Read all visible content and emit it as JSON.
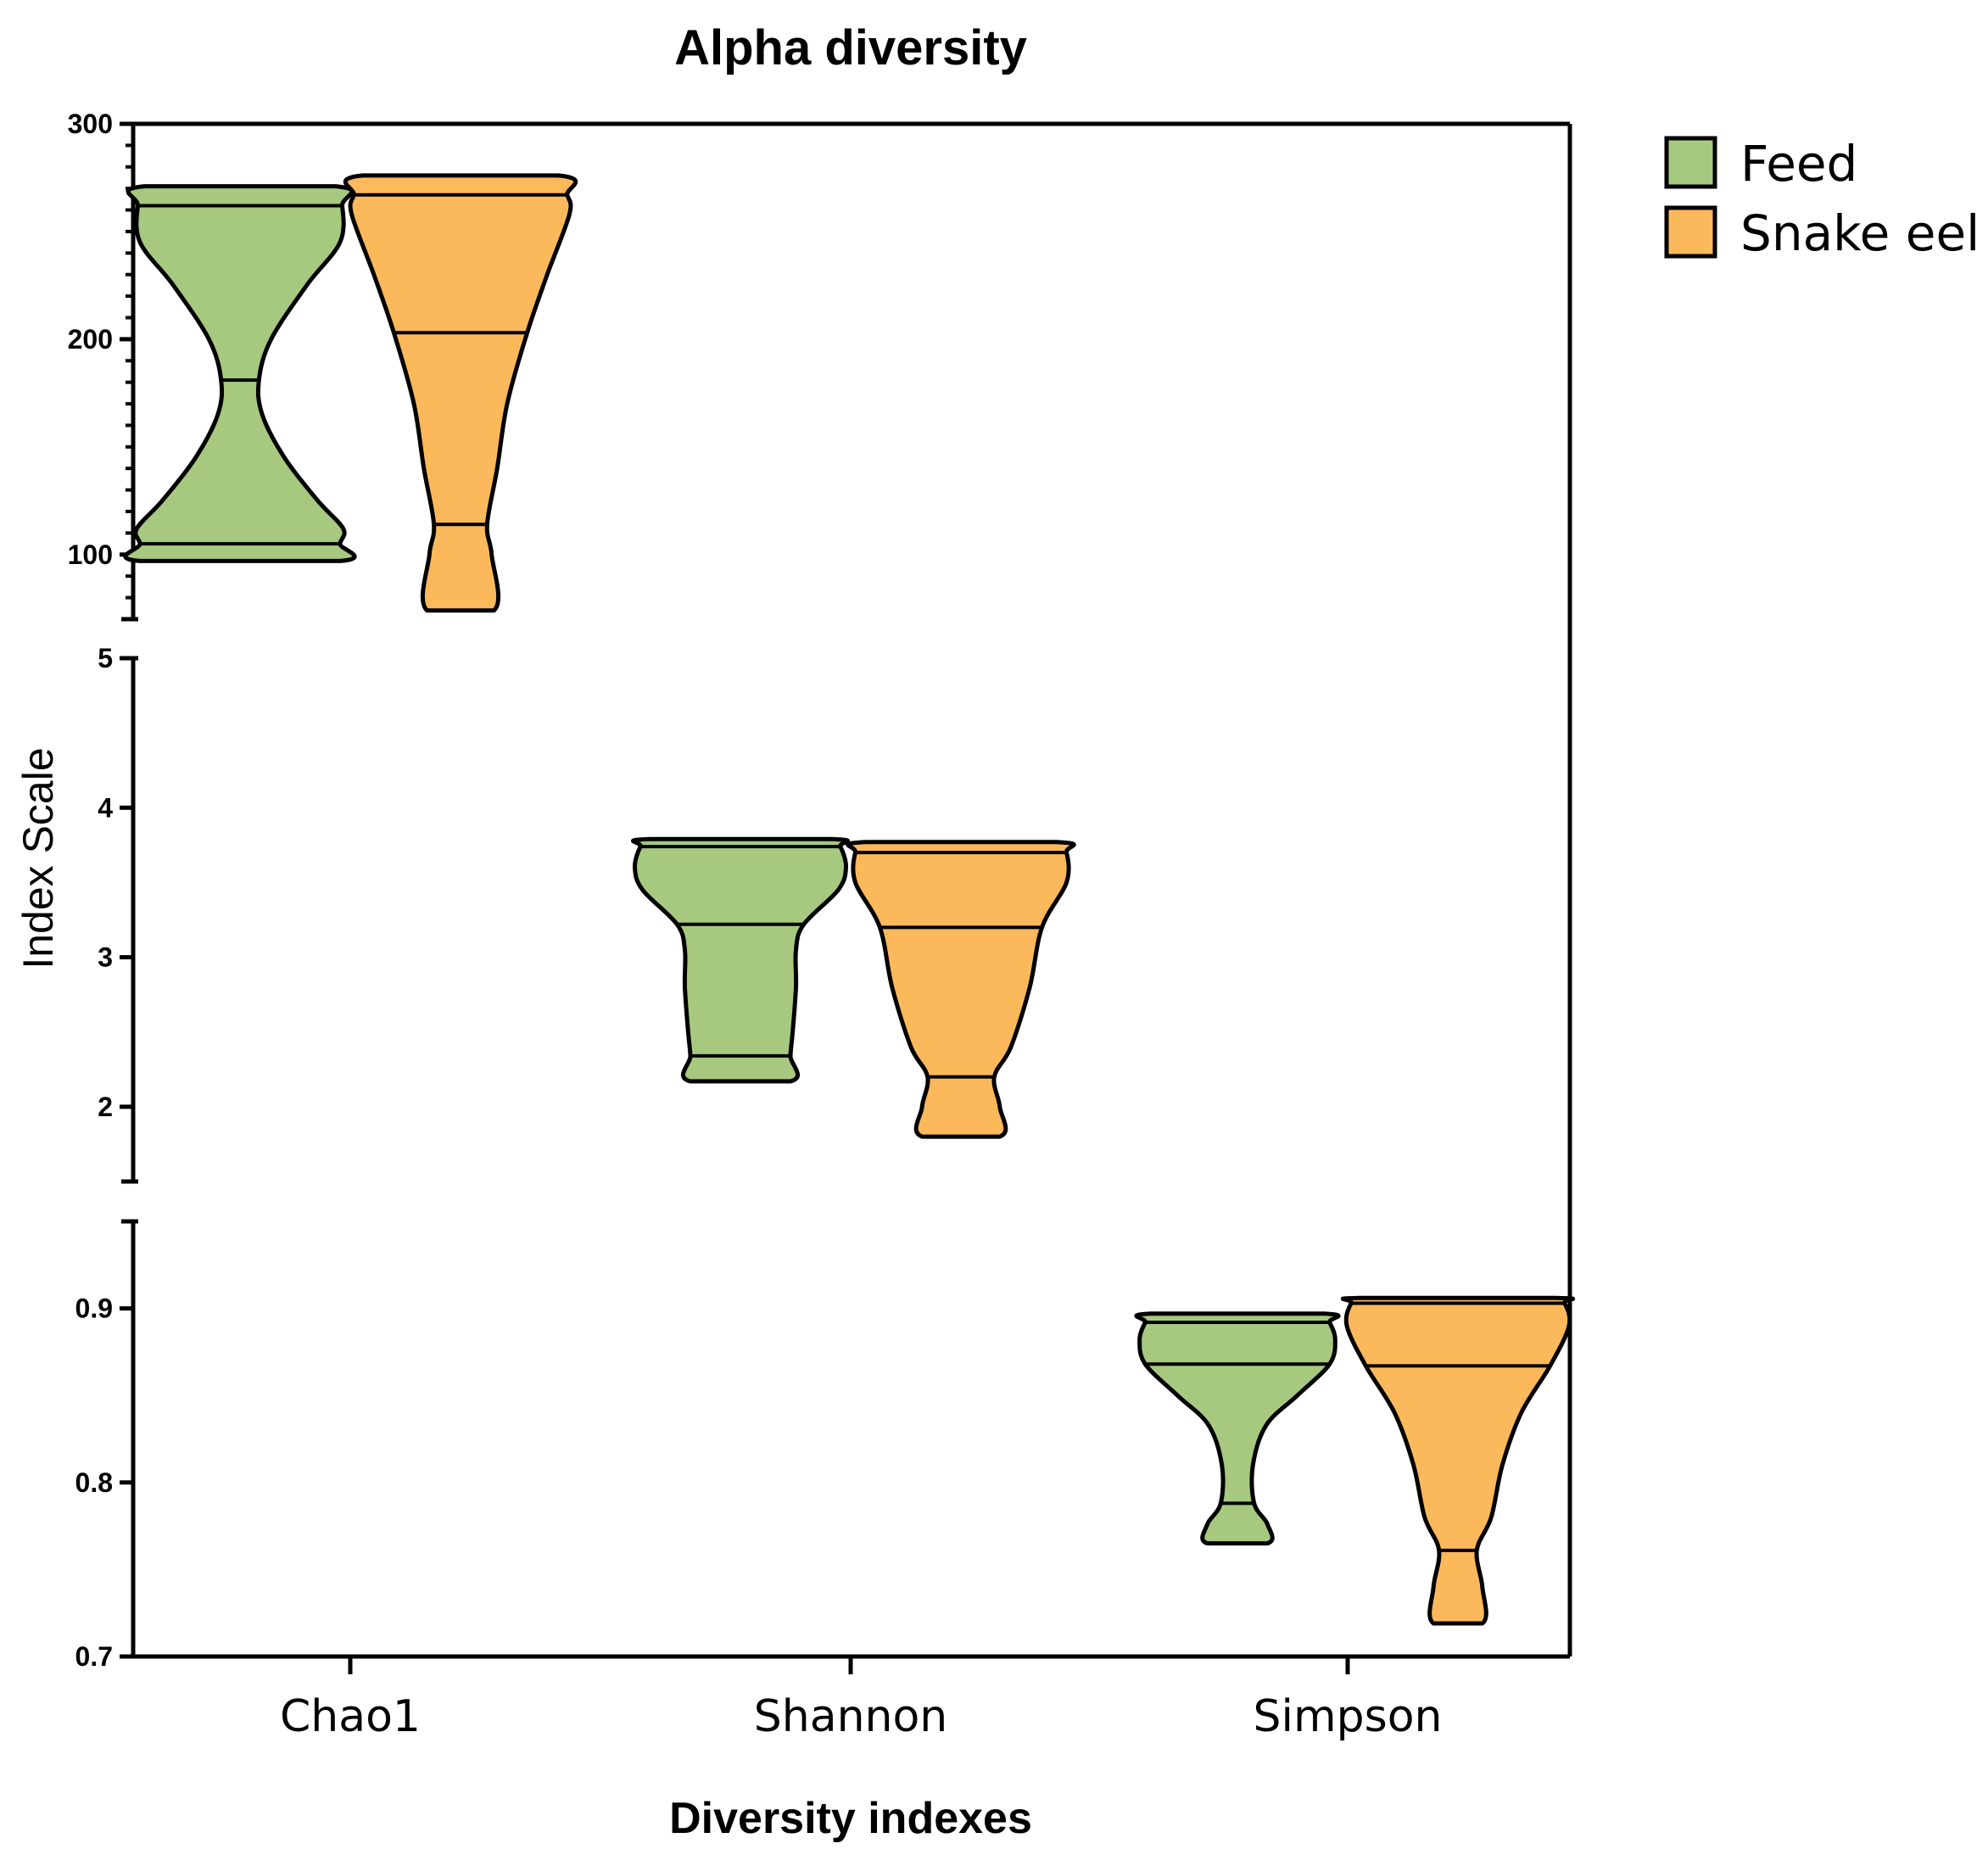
{
  "chart_data": {
    "type": "violin",
    "title": "Alpha diversity",
    "xlabel": "Diversity indexes",
    "ylabel": "Index Scale",
    "categories": [
      "Chao1",
      "Shannon",
      "Simpson"
    ],
    "series": [
      {
        "name": "Feed",
        "color": "#a6c97f"
      },
      {
        "name": "Snake eel",
        "color": "#fcb95c"
      }
    ],
    "segments": [
      {
        "category": "Chao1",
        "ylim": [
          70,
          300
        ],
        "ticks": [
          100,
          200,
          300
        ],
        "tick_labels": [
          "100",
          "200",
          "300"
        ]
      },
      {
        "category": "Shannon",
        "ylim": [
          1.5,
          5
        ],
        "ticks": [
          2,
          3,
          4,
          5
        ],
        "tick_labels": [
          "2",
          "3",
          "4",
          "5"
        ]
      },
      {
        "category": "Simpson",
        "ylim": [
          0.7,
          0.95
        ],
        "ticks": [
          0.7,
          0.8,
          0.9
        ],
        "tick_labels": [
          "0.7",
          "0.8",
          "0.9"
        ]
      }
    ],
    "violins": [
      {
        "category": "Chao1",
        "series": "Feed",
        "min": 97,
        "max": 271,
        "quartiles": [
          105,
          181,
          262
        ],
        "profile": [
          [
            97,
            0.9
          ],
          [
            105,
            0.9
          ],
          [
            112,
            0.93
          ],
          [
            125,
            0.7
          ],
          [
            145,
            0.4
          ],
          [
            165,
            0.2
          ],
          [
            181,
            0.17
          ],
          [
            200,
            0.28
          ],
          [
            225,
            0.6
          ],
          [
            245,
            0.9
          ],
          [
            262,
            0.92
          ],
          [
            271,
            0.86
          ]
        ]
      },
      {
        "category": "Chao1",
        "series": "Snake eel",
        "min": 74,
        "max": 276,
        "quartiles": [
          114,
          203,
          267
        ],
        "profile": [
          [
            74,
            0.3
          ],
          [
            100,
            0.28
          ],
          [
            114,
            0.24
          ],
          [
            140,
            0.33
          ],
          [
            170,
            0.42
          ],
          [
            203,
            0.6
          ],
          [
            230,
            0.78
          ],
          [
            258,
            0.98
          ],
          [
            267,
            0.96
          ],
          [
            276,
            0.88
          ]
        ]
      },
      {
        "category": "Shannon",
        "series": "Feed",
        "min": 2.17,
        "max": 3.79,
        "quartiles": [
          2.34,
          3.22,
          3.74
        ],
        "profile": [
          [
            2.17,
            0.45
          ],
          [
            2.34,
            0.45
          ],
          [
            2.5,
            0.47
          ],
          [
            2.8,
            0.5
          ],
          [
            3.05,
            0.5
          ],
          [
            3.22,
            0.57
          ],
          [
            3.45,
            0.88
          ],
          [
            3.6,
            0.95
          ],
          [
            3.74,
            0.9
          ],
          [
            3.79,
            0.82
          ]
        ]
      },
      {
        "category": "Shannon",
        "series": "Snake eel",
        "min": 1.8,
        "max": 3.77,
        "quartiles": [
          2.2,
          3.2,
          3.7
        ],
        "profile": [
          [
            1.8,
            0.35
          ],
          [
            2.0,
            0.35
          ],
          [
            2.2,
            0.3
          ],
          [
            2.4,
            0.45
          ],
          [
            2.8,
            0.62
          ],
          [
            3.2,
            0.73
          ],
          [
            3.5,
            0.95
          ],
          [
            3.7,
            0.95
          ],
          [
            3.77,
            0.86
          ]
        ]
      },
      {
        "category": "Simpson",
        "series": "Feed",
        "min": 0.765,
        "max": 0.897,
        "quartiles": [
          0.788,
          0.868,
          0.892
        ],
        "profile": [
          [
            0.765,
            0.27
          ],
          [
            0.776,
            0.27
          ],
          [
            0.788,
            0.15
          ],
          [
            0.81,
            0.14
          ],
          [
            0.833,
            0.26
          ],
          [
            0.85,
            0.54
          ],
          [
            0.868,
            0.83
          ],
          [
            0.882,
            0.88
          ],
          [
            0.892,
            0.83
          ],
          [
            0.897,
            0.78
          ]
        ]
      },
      {
        "category": "Simpson",
        "series": "Snake eel",
        "min": 0.719,
        "max": 0.906,
        "quartiles": [
          0.761,
          0.867,
          0.903
        ],
        "profile": [
          [
            0.719,
            0.22
          ],
          [
            0.74,
            0.22
          ],
          [
            0.761,
            0.17
          ],
          [
            0.78,
            0.3
          ],
          [
            0.81,
            0.4
          ],
          [
            0.84,
            0.57
          ],
          [
            0.867,
            0.83
          ],
          [
            0.89,
            1.0
          ],
          [
            0.903,
            0.96
          ],
          [
            0.906,
            0.88
          ]
        ]
      }
    ],
    "legend": {
      "position": "top-right",
      "entries": [
        "Feed",
        "Snake eel"
      ]
    }
  }
}
